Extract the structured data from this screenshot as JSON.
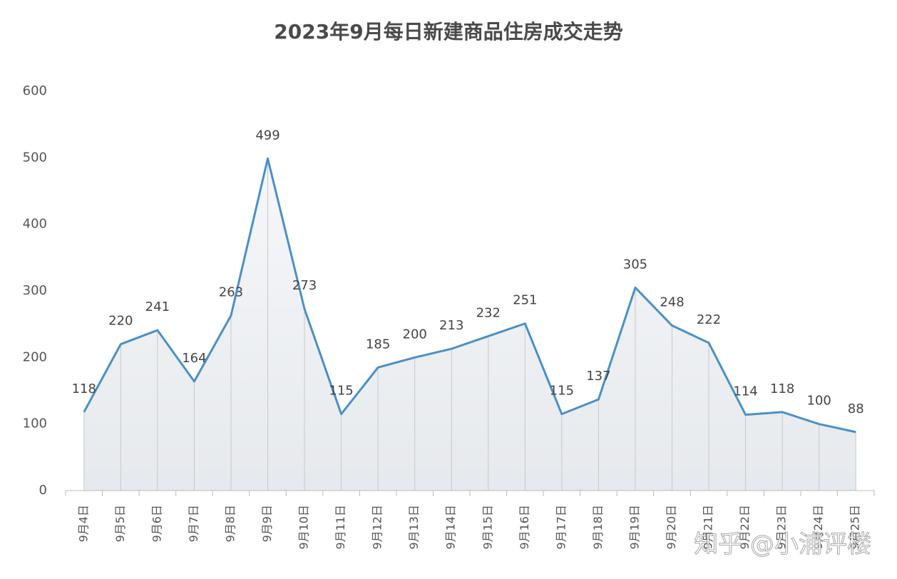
{
  "chart_data": {
    "type": "line",
    "title": "2023年9月每日新建商品住房成交走势",
    "categories": [
      "9月4日",
      "9月5日",
      "9月6日",
      "9月7日",
      "9月8日",
      "9月9日",
      "9月10日",
      "9月11日",
      "9月12日",
      "9月13日",
      "9月14日",
      "9月15日",
      "9月16日",
      "9月17日",
      "9月18日",
      "9月19日",
      "9月20日",
      "9月21日",
      "9月22日",
      "9月23日",
      "9月24日",
      "9月25日"
    ],
    "values": [
      118,
      220,
      241,
      164,
      263,
      499,
      273,
      115,
      185,
      200,
      213,
      232,
      251,
      115,
      137,
      305,
      248,
      222,
      114,
      118,
      100,
      88
    ],
    "color": "#4a90c8",
    "ylim": [
      0,
      600
    ],
    "yticks": [
      0,
      100,
      200,
      300,
      400,
      500,
      600
    ],
    "grid": false,
    "watermark": "知乎 @小浦评楼"
  }
}
